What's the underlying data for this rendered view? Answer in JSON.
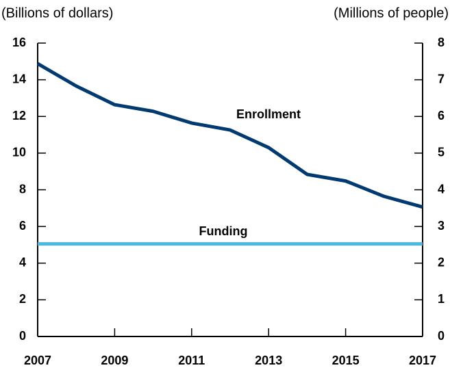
{
  "chart_data": {
    "type": "line",
    "y_label": "(Billions of dollars)",
    "y2_label": "(Millions of people)",
    "x": [
      2007,
      2008,
      2009,
      2010,
      2011,
      2012,
      2013,
      2014,
      2015,
      2016,
      2017
    ],
    "xlim": [
      2007,
      2017
    ],
    "xticks": [
      2007,
      2009,
      2011,
      2013,
      2015,
      2017
    ],
    "ylim": [
      0,
      16
    ],
    "yticks": [
      0,
      2,
      4,
      6,
      8,
      10,
      12,
      14,
      16
    ],
    "y2lim": [
      0,
      8
    ],
    "y2ticks": [
      0,
      1,
      2,
      3,
      4,
      5,
      6,
      7,
      8
    ],
    "grid": false,
    "series": [
      {
        "name": "Enrollment",
        "color": "#003a70",
        "axis": "y2",
        "values": [
          7.44,
          6.83,
          6.32,
          6.14,
          5.82,
          5.63,
          5.15,
          4.42,
          4.24,
          3.82,
          3.53
        ]
      },
      {
        "name": "Funding",
        "color": "#4ab8e0",
        "values": [
          5.05,
          5.05,
          5.05,
          5.05,
          5.05,
          5.05,
          5.05,
          5.05,
          5.05,
          5.05,
          5.05
        ]
      }
    ]
  }
}
